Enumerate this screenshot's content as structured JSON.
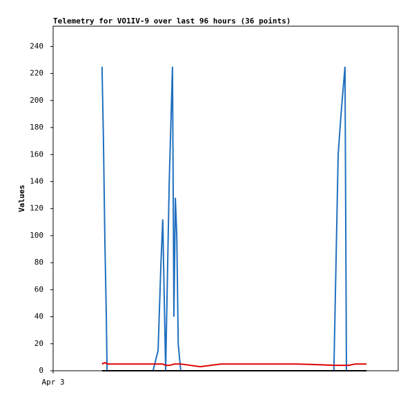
{
  "chart_data": {
    "type": "line",
    "title": "Telemetry for VO1IV-9 over last 96 hours (36 points)",
    "y_label": "Values",
    "x": [
      13.6,
      14.0,
      14.4,
      14.8,
      15.0,
      27.8,
      29.2,
      30.0,
      30.5,
      30.9,
      31.3,
      32.3,
      33.2,
      33.6,
      34.0,
      34.4,
      34.8,
      35.5,
      40.9,
      46.7,
      54.3,
      62.0,
      67.8,
      73.5,
      78.1,
      78.7,
      79.3,
      80.1,
      81.2,
      81.6,
      82.2,
      83.1,
      84.1,
      85.1,
      86.0,
      87.2
    ],
    "series": [
      {
        "color": "#1f6fbf",
        "values": [
          225,
          170,
          95,
          40,
          0,
          0,
          15,
          80,
          112,
          55,
          0,
          140,
          225,
          40,
          128,
          100,
          20,
          0,
          0,
          0,
          0,
          0,
          0,
          0,
          0,
          80,
          160,
          190,
          225,
          0,
          0,
          0,
          0,
          0,
          0,
          0
        ]
      },
      {
        "color": "#e00000",
        "values": [
          5,
          5.5,
          6,
          5.5,
          5,
          5,
          5,
          5,
          5,
          4.5,
          4,
          4,
          4.5,
          5,
          5,
          5,
          5,
          5,
          3,
          5,
          5,
          5,
          5,
          4.5,
          4,
          4,
          4,
          4,
          4,
          4,
          4,
          4.5,
          5,
          5,
          5,
          5
        ]
      },
      {
        "color": "#000000",
        "values": [
          0,
          0,
          0,
          0,
          0,
          0,
          0,
          0,
          0,
          0,
          0,
          0,
          0,
          0,
          0,
          0,
          0,
          0,
          0,
          0,
          0,
          0,
          0,
          0,
          0,
          0,
          0,
          0,
          0,
          0,
          0,
          0,
          0,
          0,
          0,
          0
        ]
      }
    ],
    "xlim": [
      0,
      96
    ],
    "xticks": [
      {
        "value": 0,
        "label": "Apr 3"
      }
    ],
    "ylim": [
      0,
      255
    ],
    "yticks": [
      0,
      20,
      40,
      60,
      80,
      100,
      120,
      140,
      160,
      180,
      200,
      220,
      240
    ]
  }
}
